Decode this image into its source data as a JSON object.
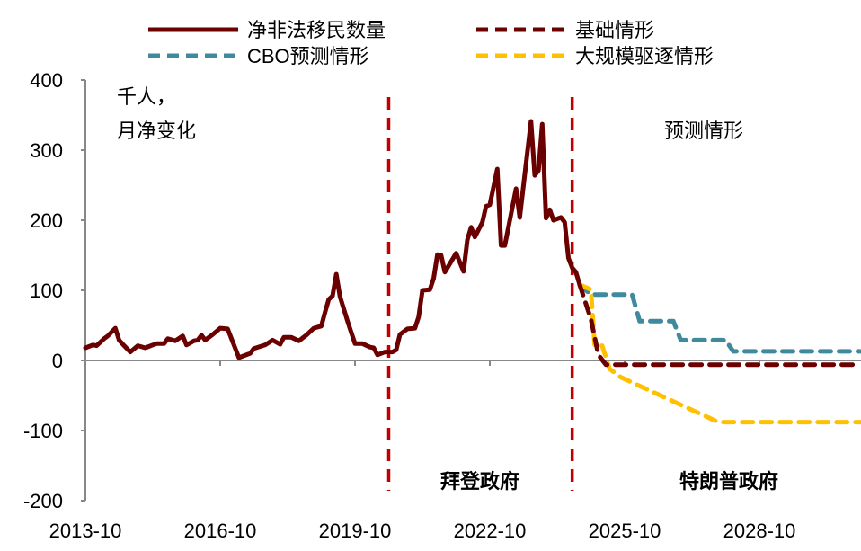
{
  "chart_data": {
    "type": "line",
    "title": "",
    "xlabel": "",
    "ylabel": "千人，\n月净变化",
    "unit_label_lines": [
      "千人，",
      "月净变化"
    ],
    "ylim": [
      -200,
      400
    ],
    "yticks": [
      400,
      300,
      200,
      100,
      0,
      -100,
      -200
    ],
    "xlim": [
      "2013-10",
      "2031-01"
    ],
    "xticks": [
      "2013-10",
      "2016-10",
      "2019-10",
      "2022-10",
      "2025-10",
      "2028-10"
    ],
    "grid": false,
    "legend_position": "top",
    "colors": {
      "actual": "#6b0000",
      "base": "#6b0000",
      "cbo": "#3f8a9c",
      "deport": "#ffc000",
      "divider": "#c00000",
      "axis": "#888888"
    },
    "vertical_markers": [
      "2020-07",
      "2024-08"
    ],
    "annotations": {
      "biden": "拜登政府",
      "trump": "特朗普政府",
      "forecast": "预测情形"
    },
    "series": [
      {
        "name": "净非法移民数量",
        "style": "solid",
        "points": [
          [
            "2013-10",
            18
          ],
          [
            "2013-12",
            22
          ],
          [
            "2014-01",
            21
          ],
          [
            "2014-03",
            31
          ],
          [
            "2014-04",
            35
          ],
          [
            "2014-06",
            46
          ],
          [
            "2014-07",
            29
          ],
          [
            "2014-08",
            23
          ],
          [
            "2014-10",
            12
          ],
          [
            "2014-12",
            21
          ],
          [
            "2015-02",
            18
          ],
          [
            "2015-04",
            22
          ],
          [
            "2015-05",
            24
          ],
          [
            "2015-07",
            24
          ],
          [
            "2015-08",
            31
          ],
          [
            "2015-10",
            28
          ],
          [
            "2015-12",
            35
          ],
          [
            "2016-01",
            22
          ],
          [
            "2016-03",
            28
          ],
          [
            "2016-04",
            29
          ],
          [
            "2016-05",
            36
          ],
          [
            "2016-06",
            29
          ],
          [
            "2016-08",
            37
          ],
          [
            "2016-10",
            46
          ],
          [
            "2016-12",
            45
          ],
          [
            "2017-03",
            4
          ],
          [
            "2017-06",
            10
          ],
          [
            "2017-07",
            17
          ],
          [
            "2017-10",
            22
          ],
          [
            "2017-12",
            29
          ],
          [
            "2018-02",
            23
          ],
          [
            "2018-03",
            33
          ],
          [
            "2018-05",
            33
          ],
          [
            "2018-07",
            28
          ],
          [
            "2018-09",
            36
          ],
          [
            "2018-11",
            46
          ],
          [
            "2019-01",
            49
          ],
          [
            "2019-02",
            69
          ],
          [
            "2019-03",
            87
          ],
          [
            "2019-04",
            92
          ],
          [
            "2019-05",
            123
          ],
          [
            "2019-06",
            91
          ],
          [
            "2019-08",
            56
          ],
          [
            "2019-09",
            40
          ],
          [
            "2019-10",
            24
          ],
          [
            "2019-12",
            24
          ],
          [
            "2020-02",
            19
          ],
          [
            "2020-03",
            18
          ],
          [
            "2020-04",
            8
          ],
          [
            "2020-06",
            12
          ],
          [
            "2020-08",
            12
          ],
          [
            "2020-09",
            15
          ],
          [
            "2020-10",
            37
          ],
          [
            "2020-12",
            45
          ],
          [
            "2021-02",
            46
          ],
          [
            "2021-03",
            62
          ],
          [
            "2021-04",
            100
          ],
          [
            "2021-06",
            101
          ],
          [
            "2021-07",
            117
          ],
          [
            "2021-08",
            151
          ],
          [
            "2021-09",
            150
          ],
          [
            "2021-10",
            126
          ],
          [
            "2022-01",
            153
          ],
          [
            "2022-03",
            127
          ],
          [
            "2022-04",
            172
          ],
          [
            "2022-05",
            190
          ],
          [
            "2022-06",
            176
          ],
          [
            "2022-08",
            197
          ],
          [
            "2022-09",
            220
          ],
          [
            "2022-10",
            222
          ],
          [
            "2022-12",
            273
          ],
          [
            "2023-01",
            164
          ],
          [
            "2023-02",
            164
          ],
          [
            "2023-05",
            245
          ],
          [
            "2023-06",
            204
          ],
          [
            "2023-09",
            341
          ],
          [
            "2023-10",
            264
          ],
          [
            "2023-11",
            271
          ],
          [
            "2023-12",
            337
          ],
          [
            "2024-01",
            203
          ],
          [
            "2024-02",
            215
          ],
          [
            "2024-03",
            200
          ],
          [
            "2024-05",
            204
          ],
          [
            "2024-06",
            197
          ],
          [
            "2024-07",
            146
          ],
          [
            "2024-08",
            132
          ],
          [
            "2024-09",
            126
          ],
          [
            "2024-10",
            108
          ]
        ]
      },
      {
        "name": "基础情形",
        "style": "dashed",
        "points": [
          [
            "2024-10",
            108
          ],
          [
            "2025-01",
            59
          ],
          [
            "2025-03",
            8
          ],
          [
            "2025-05",
            -6
          ],
          [
            "2031-01",
            -6
          ]
        ]
      },
      {
        "name": "CBO预测情形",
        "style": "dashed",
        "points": [
          [
            "2024-10",
            108
          ],
          [
            "2025-01",
            94
          ],
          [
            "2025-12",
            94
          ],
          [
            "2026-02",
            56
          ],
          [
            "2026-11",
            56
          ],
          [
            "2027-01",
            29
          ],
          [
            "2028-01",
            29
          ],
          [
            "2028-03",
            13
          ],
          [
            "2031-01",
            13
          ]
        ]
      },
      {
        "name": "大规模驱逐情形",
        "style": "dashed",
        "points": [
          [
            "2024-10",
            108
          ],
          [
            "2025-01",
            101
          ],
          [
            "2025-02",
            21
          ],
          [
            "2025-04",
            21
          ],
          [
            "2025-06",
            -12
          ],
          [
            "2025-09",
            -24
          ],
          [
            "2027-11",
            -88
          ],
          [
            "2031-01",
            -88
          ]
        ]
      }
    ]
  }
}
